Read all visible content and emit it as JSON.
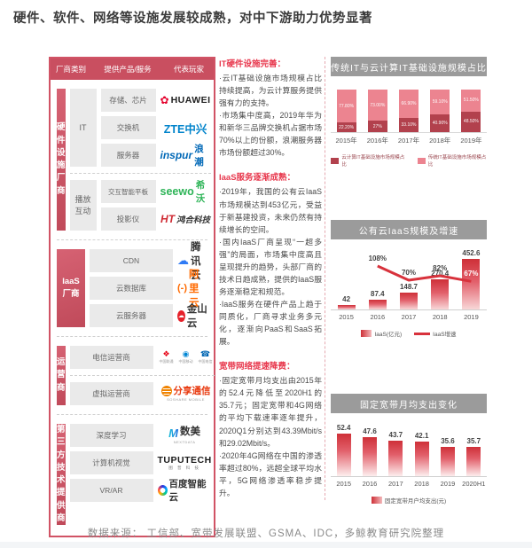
{
  "title": "硬件、软件、网络等设施发展较成熟，对中下游助力优势显著",
  "source": "数据来源： 工信部、宽带发展联盟、GSMA、IDC，多鲸教育研究院整理",
  "colors": {
    "accent_red": "#c94f60",
    "table_border": "#d15365",
    "chart_header_gray": "#9b9b9b",
    "bar_dark_red": "#b2414d",
    "bar_light_pink": "#ec8490",
    "bar_gradient_top": "#ce3038",
    "growth_line_red": "#d8323c",
    "section_heading_red": "#e8394e"
  },
  "icons": {
    "huawei_flower": "✿",
    "tencent_cloud": "☁",
    "kingsoft_cloud": "☁",
    "unicom_knot": "❖",
    "mobile_logo": "◉",
    "telecom_logo": "☎",
    "alicloud_bracket": "(-)",
    "shumei_m": "M"
  },
  "table": {
    "headers": [
      "厂商类别",
      "提供产品/服务",
      "代表玩家"
    ],
    "groups": [
      {
        "category": "硬件\n设施\n厂商",
        "subgroups": [
          {
            "label": "IT",
            "rows": [
              {
                "product": "存储、芯片",
                "vendor": "HUAWEI"
              },
              {
                "product": "交换机",
                "vendor": "ZTE中兴"
              },
              {
                "product": "服务器",
                "vendor_en": "inspur",
                "vendor_cn": "浪潮"
              }
            ]
          },
          {
            "label": "播放\n互动",
            "rows": [
              {
                "product": "交互智能平板",
                "vendor_en": "seewo",
                "vendor_cn": "希沃"
              },
              {
                "product": "投影仪",
                "vendor_en": "HT",
                "vendor_cn": "鸿合科技"
              }
            ]
          }
        ]
      },
      {
        "category": "IaaS\n厂商",
        "rows": [
          {
            "product": "CDN",
            "vendor": "腾讯云"
          },
          {
            "product": "云数据库",
            "vendor": "阿里云"
          },
          {
            "product": "云服务器",
            "vendor": "金山云"
          }
        ]
      },
      {
        "category": "运营商",
        "rows": [
          {
            "product": "电信运营商",
            "operators": [
              "中国联通",
              "中国移动",
              "中国电信"
            ]
          },
          {
            "product": "虚拟运营商",
            "vendor": "分享通信",
            "vendor_sub": "SOSHARE MOBILE"
          }
        ]
      },
      {
        "category": "第三方\n技术\n提供商",
        "rows": [
          {
            "product": "深度学习",
            "vendor": "数美",
            "vendor_sub": "NEXTDATA"
          },
          {
            "product": "计算机视觉",
            "vendor": "TUPUTECH",
            "vendor_sub": "图 普 科 技"
          },
          {
            "product": "VR/AR",
            "vendor": "百度智能云"
          }
        ]
      }
    ]
  },
  "middle": {
    "sections": [
      {
        "heading": "IT硬件设施完善：",
        "bullets": [
          "·云IT基础设施市场规模占比持续提高，为云计算服务提供强有力的支持。",
          "·市场集中度高，2019年华为和新华三品牌交换机占据市场70%以上的份额，浪潮服务器市场份额超过30%。"
        ]
      },
      {
        "heading": "IaaS服务逐渐成熟：",
        "bullets": [
          "·2019年，我国的公有云IaaS市场规模达到453亿元，受益于新基建投资，未来仍然有持续增长的空间。",
          "·国内IaaS厂商呈现“一超多强”的局面，市场集中度高且呈现提升的趋势，头部厂商的技术日趋成熟，提供的IaaS服务逐渐稳定和规范。",
          "·IaaS服务在硬件产品上趋于同质化，厂商寻求业务多元化，逐渐向PaaS和SaaS拓展。"
        ]
      },
      {
        "heading": "宽带网络提速降费：",
        "bullets": [
          "·固定宽带月均支出由2015年的52.4元降低至2020H1的35.7元；固定宽带和4G网络的平均下载速率逐年提升，2020Q1分别达到43.39Mbit/s和29.02Mbit/s。",
          "·2020年4G网络在中国的渗透率超过80%，远超全球平均水平，5G网络渗透率稳步提升。"
        ]
      }
    ]
  },
  "chart_data": [
    {
      "type": "bar",
      "stacked": true,
      "title": "传统IT与云计算IT基础设施规模占比",
      "categories": [
        "2015年",
        "2016年",
        "2017年",
        "2018年",
        "2019年"
      ],
      "series": [
        {
          "name": "云计算IT基础设施市场规模占比",
          "color": "#b2414d",
          "values": [
            22.2,
            27,
            33.1,
            40.9,
            48.5
          ],
          "labels": [
            "22.20%",
            "27%",
            "33.10%",
            "40.90%",
            "48.50%"
          ]
        },
        {
          "name": "传统IT基础设施市场规模占比",
          "color": "#ec8490",
          "values": [
            77.8,
            73,
            66.9,
            59.1,
            51.5
          ],
          "labels": [
            "77.80%",
            "73.00%",
            "66.90%",
            "59.10%",
            "51.50%"
          ]
        }
      ],
      "ylim": [
        0,
        100
      ],
      "legend_position": "bottom"
    },
    {
      "type": "bar+line",
      "title": "公有云IaaS规模及增速",
      "categories": [
        "2015",
        "2016",
        "2017",
        "2018",
        "2019"
      ],
      "series": [
        {
          "name": "IaaS(亿元)",
          "type": "bar",
          "values": [
            42,
            87.4,
            148.7,
            270.4,
            452.6
          ],
          "labels": [
            "42",
            "87.4",
            "148.7",
            "270.4",
            "452.6"
          ]
        },
        {
          "name": "IaaS增速",
          "type": "line",
          "color": "#d8323c",
          "values": [
            null,
            108,
            70,
            82,
            67
          ],
          "labels": [
            "",
            "108%",
            "70%",
            "82%",
            "67%"
          ]
        }
      ],
      "legend_position": "bottom"
    },
    {
      "type": "bar",
      "title": "固定宽带月均支出变化",
      "categories": [
        "2015",
        "2016",
        "2017",
        "2018",
        "2019",
        "2020H1"
      ],
      "series": [
        {
          "name": "固定宽带月户均支出(元)",
          "values": [
            52.4,
            47.6,
            43.7,
            42.1,
            35.6,
            35.7
          ],
          "labels": [
            "52.4",
            "47.6",
            "43.7",
            "42.1",
            "35.6",
            "35.7"
          ]
        }
      ],
      "legend_position": "bottom"
    }
  ]
}
